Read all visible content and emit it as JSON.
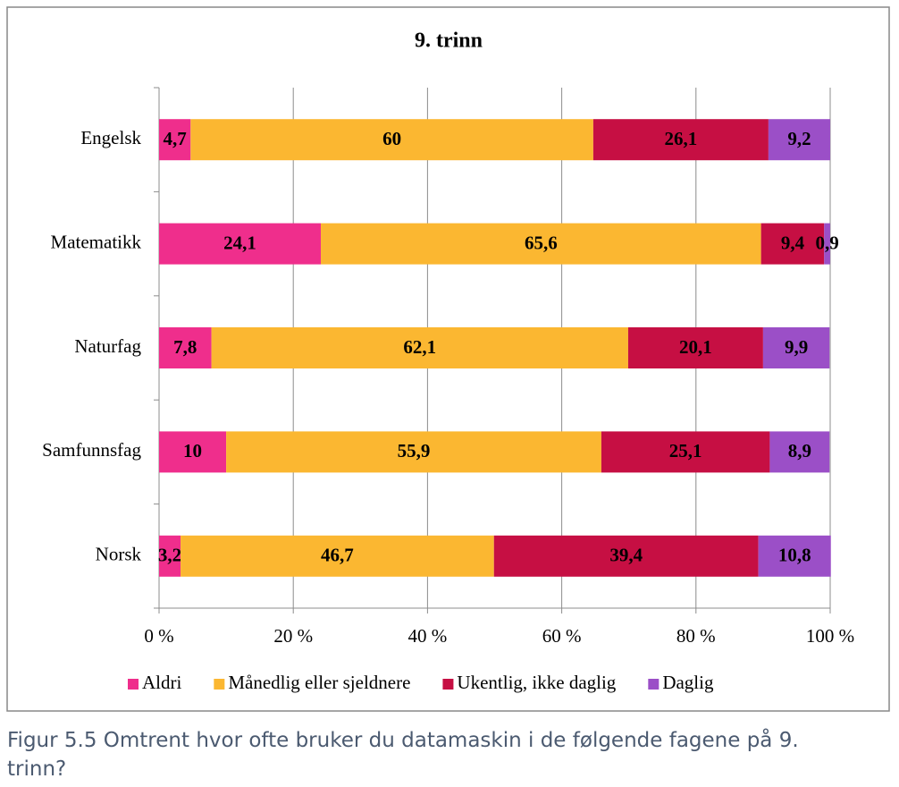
{
  "chart_data": {
    "type": "stacked-bar-horizontal",
    "title": "9. trinn",
    "categories": [
      "Engelsk",
      "Matematikk",
      "Naturfag",
      "Samfunnsfag",
      "Norsk"
    ],
    "series": [
      {
        "name": "Aldri",
        "color": "#ef2e8c",
        "values": [
          4.7,
          24.1,
          7.8,
          10,
          3.2
        ],
        "value_labels": [
          "4,7",
          "24,1",
          "7,8",
          "10",
          "3,2"
        ]
      },
      {
        "name": "Månedlig eller sjeldnere",
        "color": "#fbb731",
        "values": [
          60,
          65.6,
          62.1,
          55.9,
          46.7
        ],
        "value_labels": [
          "60",
          "65,6",
          "62,1",
          "55,9",
          "46,7"
        ]
      },
      {
        "name": "Ukentlig, ikke daglig",
        "color": "#c60f43",
        "values": [
          26.1,
          9.4,
          20.1,
          25.1,
          39.4
        ],
        "value_labels": [
          "26,1",
          "9,4",
          "20,1",
          "25,1",
          "39,4"
        ]
      },
      {
        "name": "Daglig",
        "color": "#9b4fc7",
        "values": [
          9.2,
          0.9,
          9.9,
          8.9,
          10.8
        ],
        "value_labels": [
          "9,2",
          "0,9",
          "9,9",
          "8,9",
          "10,8"
        ]
      }
    ],
    "xlim": [
      0,
      100
    ],
    "xticks": [
      {
        "value": 0,
        "label": "0 %"
      },
      {
        "value": 20,
        "label": "20 %"
      },
      {
        "value": 40,
        "label": "40 %"
      },
      {
        "value": 60,
        "label": "60 %"
      },
      {
        "value": 80,
        "label": "80 %"
      },
      {
        "value": 100,
        "label": "100 %"
      }
    ],
    "grid": true,
    "legend": "bottom"
  },
  "caption": "Figur 5.5 Omtrent hvor ofte bruker du datamaskin i de følgende fagene på 9. trinn?"
}
